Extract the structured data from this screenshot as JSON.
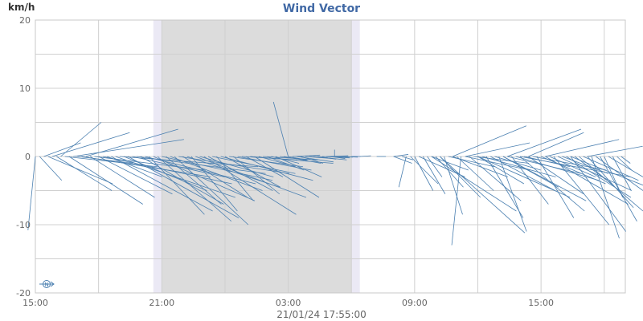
{
  "chart_data": {
    "type": "vector",
    "title": "Wind Vector",
    "ylabel": "km/h",
    "footer": "21/01/24 17:55:00",
    "ylim": [
      -20,
      20
    ],
    "yticks": [
      "20",
      "10",
      "0",
      "-10",
      "-20"
    ],
    "xticks": [
      "15:00",
      "21:00",
      "03:00",
      "09:00",
      "15:00"
    ],
    "xlim_hours": [
      0,
      28
    ],
    "night_bands_hours": [
      {
        "start": 5.6,
        "end": 15.4,
        "kind": "twilight"
      },
      {
        "start": 6.0,
        "end": 15.0,
        "kind": "night"
      }
    ],
    "colors": {
      "vector": "#4a7fb0",
      "title": "#4169a5",
      "night": "#dcdcdc",
      "twilight": "#ebe9f5",
      "grid": "#d0d0d0"
    },
    "compass_icon": "north-arrow-icon",
    "series": [
      {
        "vectors": [
          [
            0.0,
            -0.4,
            -10.8
          ],
          [
            0.05,
            0.0,
            0.0
          ],
          [
            0.2,
            1.2,
            -3.5
          ],
          [
            0.4,
            2.0,
            2.0
          ],
          [
            0.6,
            3.5,
            -4.0
          ],
          [
            0.8,
            4.2,
            3.5
          ],
          [
            1.0,
            3.0,
            -5.0
          ],
          [
            1.2,
            2.2,
            5.0
          ],
          [
            1.4,
            5.0,
            -1.5
          ],
          [
            1.6,
            4.0,
            -7.0
          ],
          [
            1.8,
            6.0,
            2.5
          ],
          [
            2.0,
            3.0,
            -1.0
          ],
          [
            2.2,
            7.0,
            -3.0
          ],
          [
            2.4,
            5.0,
            4.0
          ],
          [
            2.6,
            3.5,
            -6.0
          ],
          [
            2.8,
            6.0,
            -2.0
          ],
          [
            3.0,
            4.0,
            -5.5
          ],
          [
            3.2,
            7.0,
            -4.0
          ],
          [
            3.4,
            3.0,
            -3.0
          ],
          [
            3.6,
            5.5,
            -8.0
          ],
          [
            3.8,
            6.5,
            -6.0
          ],
          [
            4.0,
            7.5,
            -1.5
          ],
          [
            4.2,
            4.5,
            -5.0
          ],
          [
            4.4,
            6.0,
            -9.0
          ],
          [
            4.6,
            5.0,
            -3.0
          ],
          [
            4.8,
            7.0,
            -2.5
          ],
          [
            5.0,
            4.5,
            -7.0
          ],
          [
            5.2,
            6.0,
            -4.0
          ],
          [
            5.4,
            3.0,
            -8.5
          ],
          [
            5.6,
            5.5,
            -6.5
          ],
          [
            5.8,
            4.0,
            -9.5
          ],
          [
            6.0,
            6.0,
            -3.5
          ],
          [
            6.2,
            3.0,
            -7.0
          ],
          [
            6.4,
            5.0,
            -5.0
          ],
          [
            6.6,
            4.0,
            -10.0
          ],
          [
            6.8,
            6.0,
            -2.5
          ],
          [
            7.0,
            3.5,
            -6.0
          ],
          [
            7.2,
            5.0,
            -4.5
          ],
          [
            7.4,
            2.5,
            -8.0
          ],
          [
            7.6,
            6.0,
            -6.0
          ],
          [
            7.8,
            4.0,
            -3.0
          ],
          [
            8.0,
            5.0,
            -8.5
          ],
          [
            8.2,
            3.5,
            -5.0
          ],
          [
            8.4,
            4.5,
            -2.5
          ],
          [
            8.6,
            2.0,
            -6.5
          ],
          [
            8.8,
            5.0,
            -3.5
          ],
          [
            9.0,
            3.0,
            -4.5
          ],
          [
            9.2,
            4.0,
            -1.5
          ],
          [
            9.4,
            2.5,
            -5.5
          ],
          [
            9.6,
            4.0,
            -2.0
          ],
          [
            9.8,
            3.0,
            -0.5
          ],
          [
            10.0,
            2.0,
            -3.0
          ],
          [
            10.2,
            4.5,
            -1.0
          ],
          [
            10.4,
            3.5,
            -6.0
          ],
          [
            10.6,
            2.0,
            -1.5
          ],
          [
            10.8,
            3.0,
            -0.5
          ],
          [
            11.0,
            2.0,
            -2.0
          ],
          [
            11.2,
            1.5,
            -1.0
          ],
          [
            11.4,
            2.5,
            -3.0
          ],
          [
            11.6,
            1.5,
            -0.5
          ],
          [
            11.8,
            2.0,
            -1.0
          ],
          [
            12.0,
            1.0,
            -0.5
          ],
          [
            12.2,
            1.5,
            0.2
          ],
          [
            12.4,
            2.0,
            -0.8
          ],
          [
            12.6,
            1.2,
            -1.0
          ],
          [
            12.8,
            1.5,
            -0.3
          ],
          [
            13.0,
            1.0,
            -0.2
          ],
          [
            13.2,
            1.8,
            -0.5
          ],
          [
            13.4,
            1.0,
            -0.4
          ],
          [
            13.6,
            1.5,
            -0.2
          ],
          [
            13.8,
            1.2,
            0.1
          ],
          [
            14.0,
            0.8,
            -0.3
          ],
          [
            14.2,
            1.0,
            -0.1
          ],
          [
            14.4,
            0.5,
            0.1
          ],
          [
            14.6,
            0.8,
            -0.1
          ],
          [
            15.0,
            0.5,
            0.0
          ],
          [
            15.4,
            0.6,
            0.1
          ],
          [
            16.2,
            0.5,
            0.0
          ],
          [
            17.0,
            0.8,
            0.3
          ],
          [
            17.4,
            0.6,
            -0.5
          ],
          [
            17.6,
            -0.4,
            -4.5
          ],
          [
            17.8,
            1.5,
            -4.0
          ],
          [
            18.0,
            1.0,
            -5.0
          ],
          [
            18.2,
            2.5,
            -3.0
          ],
          [
            18.4,
            1.2,
            -5.5
          ],
          [
            18.6,
            0.8,
            -3.0
          ],
          [
            18.8,
            2.0,
            -2.0
          ],
          [
            19.0,
            1.5,
            -4.5
          ],
          [
            19.2,
            2.2,
            -6.0
          ],
          [
            19.4,
            1.0,
            -8.5
          ],
          [
            19.6,
            2.5,
            -1.5
          ],
          [
            19.8,
            3.0,
            -3.0
          ],
          [
            20.0,
            2.0,
            -5.0
          ],
          [
            20.2,
            -0.5,
            -13.0
          ],
          [
            20.4,
            3.5,
            -2.0
          ],
          [
            20.6,
            2.8,
            -6.5
          ],
          [
            20.8,
            3.0,
            -1.0
          ],
          [
            21.0,
            2.5,
            -4.0
          ],
          [
            21.2,
            4.0,
            -3.0
          ],
          [
            21.4,
            2.0,
            -9.0
          ],
          [
            21.6,
            3.5,
            -5.0
          ],
          [
            21.8,
            2.5,
            -2.0
          ],
          [
            22.0,
            1.5,
            -11.0
          ],
          [
            22.2,
            3.0,
            -4.5
          ],
          [
            22.4,
            4.0,
            -2.5
          ],
          [
            22.6,
            2.0,
            -7.0
          ],
          [
            22.8,
            4.5,
            -3.5
          ],
          [
            23.0,
            3.5,
            -8.0
          ],
          [
            23.2,
            2.5,
            -1.5
          ],
          [
            23.4,
            3.0,
            -5.5
          ],
          [
            23.6,
            4.0,
            -2.0
          ],
          [
            23.8,
            2.0,
            -9.0
          ],
          [
            24.0,
            3.5,
            -4.0
          ],
          [
            24.2,
            4.5,
            -7.0
          ],
          [
            24.4,
            2.5,
            -3.0
          ],
          [
            24.6,
            3.0,
            -10.0
          ],
          [
            24.8,
            4.0,
            -5.0
          ],
          [
            25.0,
            2.5,
            -2.5
          ],
          [
            25.2,
            3.5,
            -6.0
          ],
          [
            25.4,
            3.0,
            -11.0
          ],
          [
            25.6,
            2.0,
            -4.0
          ],
          [
            25.8,
            4.0,
            -8.0
          ],
          [
            26.0,
            3.0,
            -3.5
          ],
          [
            26.2,
            2.5,
            -7.5
          ],
          [
            26.4,
            1.5,
            -12.0
          ],
          [
            26.6,
            3.0,
            -5.0
          ],
          [
            26.8,
            2.0,
            -9.5
          ],
          [
            27.0,
            1.0,
            -6.0
          ],
          [
            27.2,
            2.0,
            -3.0
          ],
          [
            27.4,
            1.0,
            -5.0
          ],
          [
            27.6,
            0.8,
            -2.0
          ],
          [
            27.8,
            0.5,
            -1.0
          ],
          [
            19.8,
            4.0,
            4.5
          ],
          [
            20.4,
            3.5,
            2.0
          ],
          [
            22.4,
            4.0,
            4.0
          ],
          [
            23.4,
            3.0,
            3.5
          ],
          [
            24.2,
            4.0,
            2.5
          ],
          [
            26.2,
            3.0,
            1.5
          ],
          [
            12.0,
            -0.8,
            8.0
          ],
          [
            14.2,
            0.0,
            1.0
          ],
          [
            17.0,
            1.0,
            -1.0
          ]
        ]
      },
      {
        "vectors": [
          [
            19.2,
            4.6,
            -11.2
          ],
          [
            18.8,
            4.6,
            -8.0
          ],
          [
            22.2,
            4.5,
            -6.5
          ],
          [
            25.4,
            4.2,
            -4.2
          ],
          [
            23.0,
            6.0,
            -3.0
          ],
          [
            21.0,
            5.0,
            -6.0
          ]
        ]
      }
    ]
  }
}
